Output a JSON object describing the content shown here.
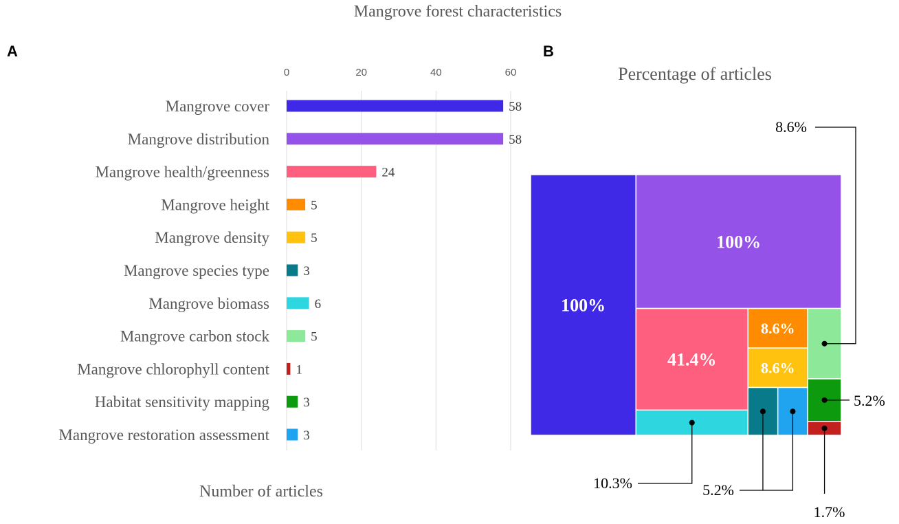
{
  "figure": {
    "title": "Mangrove forest characteristics",
    "panel_a_label": "A",
    "panel_b_label": "B"
  },
  "chart_data": [
    {
      "type": "bar",
      "orientation": "horizontal",
      "xlabel": "Number of articles",
      "ylabel": "",
      "xlim": [
        0,
        60
      ],
      "xticks": [
        0,
        20,
        40,
        60
      ],
      "grid": true,
      "categories": [
        "Mangrove cover",
        "Mangrove distribution",
        "Mangrove health/greenness",
        "Mangrove height",
        "Mangrove density",
        "Mangrove species type",
        "Mangrove biomass",
        "Mangrove carbon stock",
        "Mangrove chlorophyll content",
        "Habitat sensitivity mapping",
        "Mangrove restoration assessment"
      ],
      "values": [
        58,
        58,
        24,
        5,
        5,
        3,
        6,
        5,
        1,
        3,
        3
      ],
      "colors": [
        "#4029e6",
        "#9452e8",
        "#ff5f7e",
        "#ff8c00",
        "#ffc20e",
        "#087a8a",
        "#2ed6e0",
        "#8de89a",
        "#c21f1f",
        "#0e9a0e",
        "#20a4f0"
      ]
    },
    {
      "type": "treemap",
      "title": "Percentage of articles",
      "cells": [
        {
          "name": "Mangrove cover",
          "value": 100,
          "label": "100%",
          "color": "#4029e6"
        },
        {
          "name": "Mangrove distribution",
          "value": 100,
          "label": "100%",
          "color": "#9452e8"
        },
        {
          "name": "Mangrove health/greenness",
          "value": 41.4,
          "label": "41.4%",
          "color": "#ff5f7e"
        },
        {
          "name": "Mangrove height",
          "value": 8.6,
          "label": "8.6%",
          "color": "#ff8c00"
        },
        {
          "name": "Mangrove density",
          "value": 8.6,
          "label": "8.6%",
          "color": "#ffc20e"
        },
        {
          "name": "Mangrove biomass",
          "value": 10.3,
          "color": "#2ed6e0"
        },
        {
          "name": "Mangrove carbon stock",
          "value": 8.6,
          "color": "#8de89a"
        },
        {
          "name": "Mangrove species type",
          "value": 5.2,
          "color": "#087a8a"
        },
        {
          "name": "Mangrove restoration assessment",
          "value": 5.2,
          "color": "#20a4f0"
        },
        {
          "name": "Habitat sensitivity mapping",
          "value": 5.2,
          "color": "#0e9a0e"
        },
        {
          "name": "Mangrove chlorophyll content",
          "value": 1.7,
          "color": "#c21f1f"
        }
      ],
      "callouts": [
        "8.6%",
        "5.2%",
        "10.3%",
        "5.2%",
        "1.7%"
      ]
    }
  ]
}
